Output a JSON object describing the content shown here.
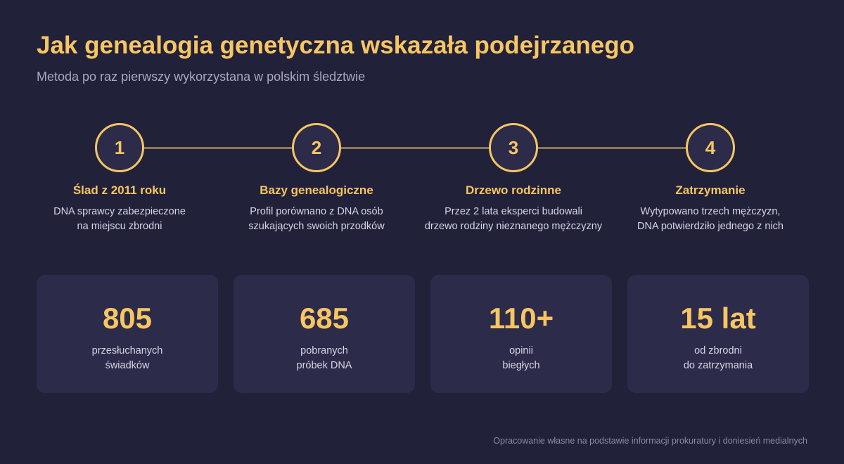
{
  "header": {
    "title": "Jak genealogia genetyczna wskazała podejrzanego",
    "subtitle": "Metoda po raz pierwszy wykorzystana w polskim śledztwie"
  },
  "steps": [
    {
      "number": "1",
      "title": "Ślad z 2011 roku",
      "desc": [
        "DNA sprawcy zabezpieczone",
        "na miejscu zbrodni"
      ]
    },
    {
      "number": "2",
      "title": "Bazy genealogiczne",
      "desc": [
        "Profil porównano z DNA osób",
        "szukających swoich przodków"
      ]
    },
    {
      "number": "3",
      "title": "Drzewo rodzinne",
      "desc": [
        "Przez 2 lata eksperci budowali",
        "drzewo rodziny nieznanego mężczyzny"
      ]
    },
    {
      "number": "4",
      "title": "Zatrzymanie",
      "desc": [
        "Wytypowano trzech mężczyzn,",
        "DNA potwierdziło jednego z nich"
      ]
    }
  ],
  "stats": [
    {
      "value": "805",
      "label": [
        "przesłuchanych",
        "świadków"
      ]
    },
    {
      "value": "685",
      "label": [
        "pobranych",
        "próbek DNA"
      ]
    },
    {
      "value": "110+",
      "label": [
        "opinii",
        "biegłych"
      ]
    },
    {
      "value": "15 lat",
      "label": [
        "od zbrodni",
        "do zatrzymania"
      ]
    }
  ],
  "footer": {
    "source": "Opracowanie własne na podstawie informacji prokuratury i doniesień medialnych"
  },
  "colors": {
    "background": "#22213a",
    "card": "#2d2b4a",
    "accent": "#f7c662",
    "text": "#d6d5e4",
    "muted": "#a9a8bf",
    "connector": "#8a7a55"
  }
}
